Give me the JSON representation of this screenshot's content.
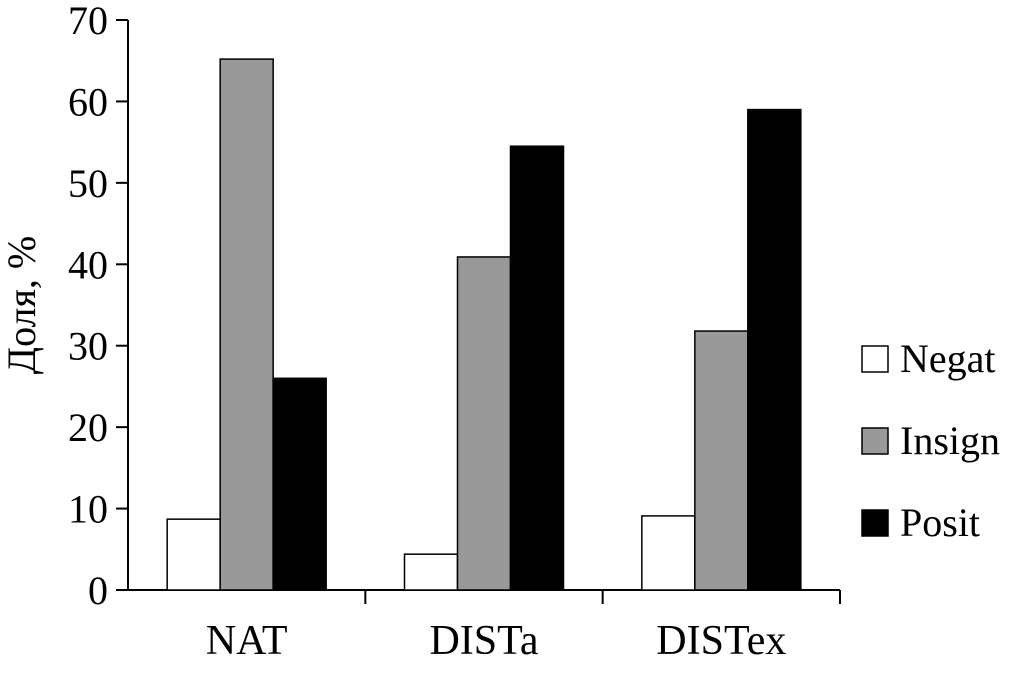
{
  "chart_data": {
    "type": "bar",
    "categories": [
      "NAT",
      "DISTa",
      "DISTex"
    ],
    "series": [
      {
        "name": "Negat",
        "values": [
          8.7,
          4.4,
          9.1
        ],
        "color": "#ffffff"
      },
      {
        "name": "Insign",
        "values": [
          65.2,
          40.9,
          31.8
        ],
        "color": "#999999"
      },
      {
        "name": "Posit",
        "values": [
          26.0,
          54.5,
          59.0
        ],
        "color": "#000000"
      }
    ],
    "ylabel": "Доля, %",
    "xlabel": "",
    "ylim": [
      0,
      70
    ],
    "yticks": [
      0,
      10,
      20,
      30,
      40,
      50,
      60,
      70
    ],
    "grid": false,
    "legend_position": "right"
  }
}
